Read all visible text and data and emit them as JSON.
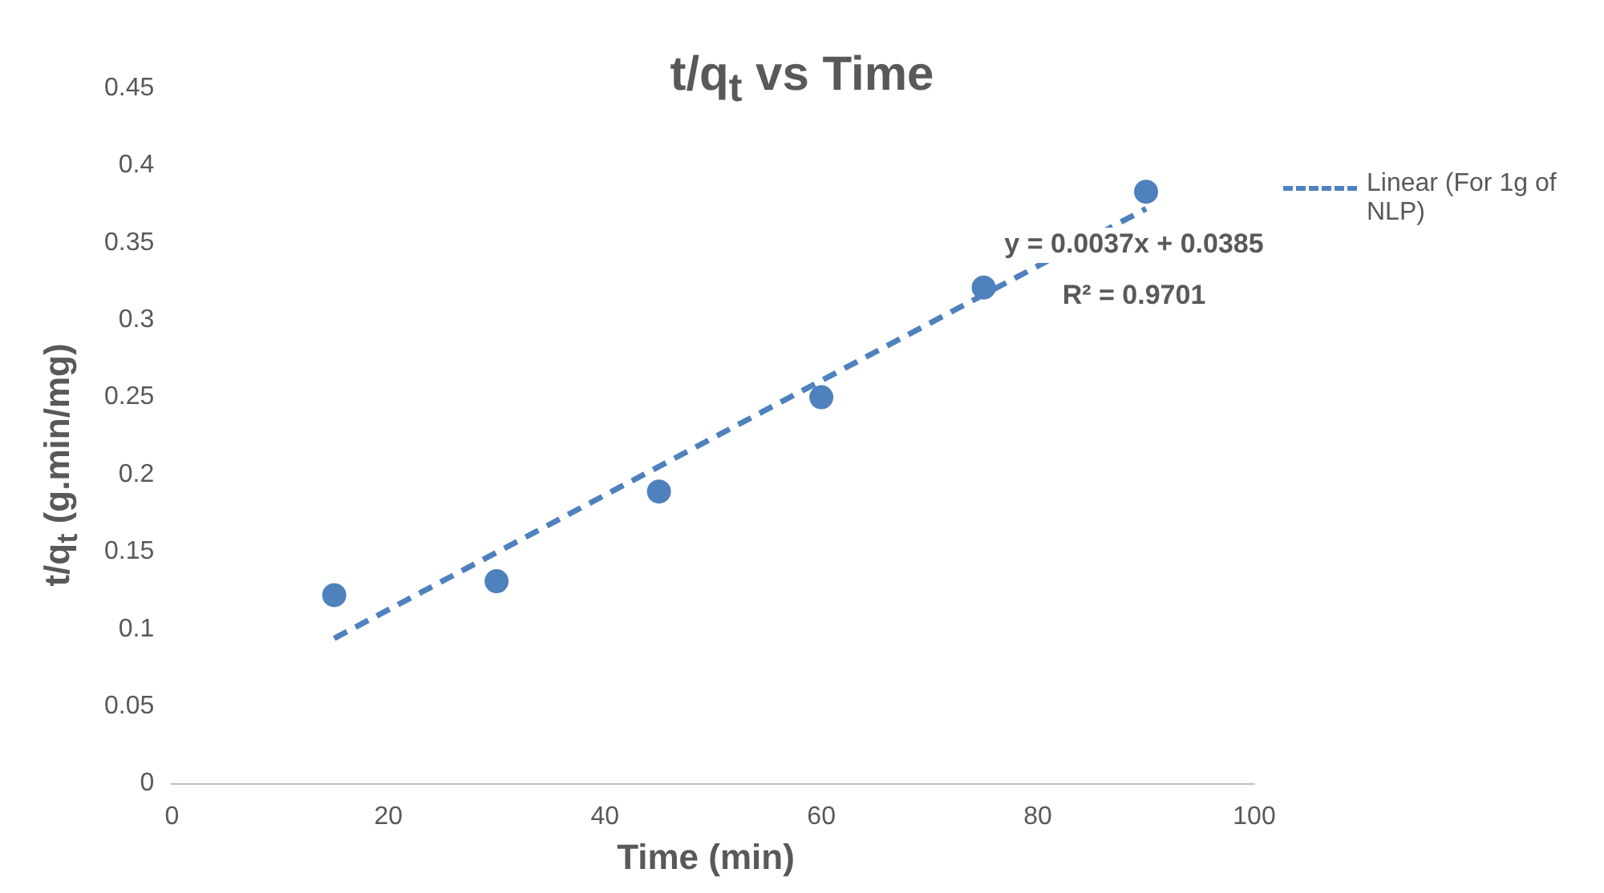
{
  "chart_data": {
    "type": "scatter",
    "title": "t/q$_{t}$ vs Time",
    "xlabel": "Time (min)",
    "ylabel": "t/q$_{t}$ (g.min/mg)",
    "series": [
      {
        "color": "#4f81bd",
        "x": [
          15,
          30,
          45,
          60,
          75,
          90
        ],
        "values": [
          0.122,
          0.131,
          0.189,
          0.25,
          0.321,
          0.383
        ],
        "marker": "circle"
      },
      {
        "type": "line",
        "name": "Linear (For 1g of NLP)",
        "color": "#4f81bd",
        "x": [
          15,
          90
        ],
        "values": [
          0.094,
          0.372
        ],
        "line_style": "dashed",
        "marker": "none"
      }
    ],
    "xlim": [
      0,
      100
    ],
    "xticks": [
      0,
      20,
      40,
      60,
      80,
      100
    ],
    "ylim": [
      0,
      0.45
    ],
    "yticks": [
      0,
      0.05,
      0.1,
      0.15,
      0.2,
      0.25,
      0.3,
      0.35,
      0.4,
      0.45
    ],
    "grid": false,
    "legend": "right",
    "annotations": [
      "y = 0.0037x + 0.0385",
      "R² = 0.9701"
    ]
  }
}
